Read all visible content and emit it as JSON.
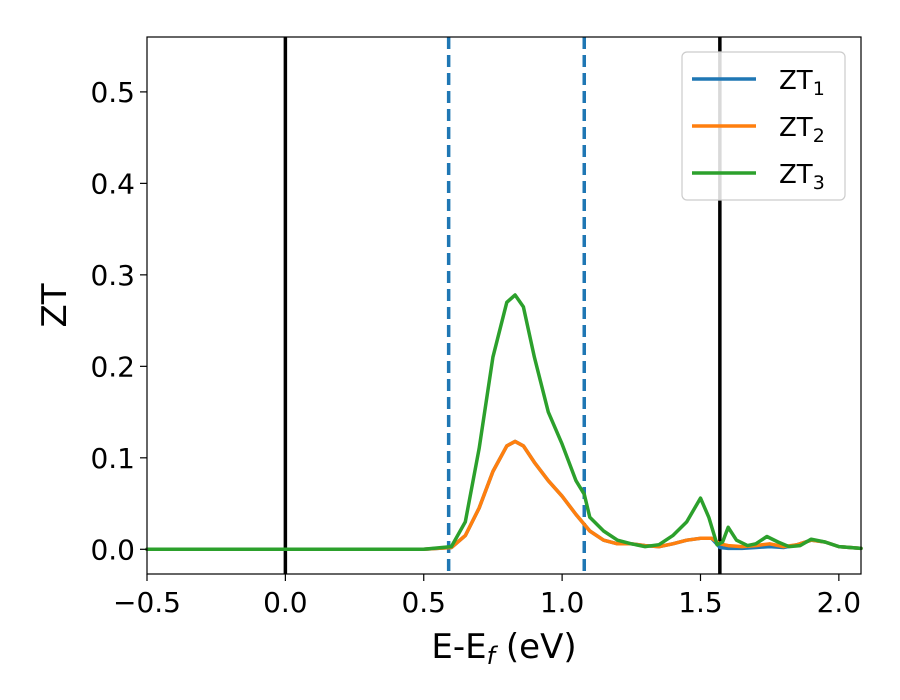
{
  "chart_data": {
    "type": "line",
    "xlabel": "E-E",
    "xlabel_sub": "f",
    "xlabel_unit": " (eV)",
    "ylabel": "ZT",
    "xlim": [
      -0.5,
      2.08
    ],
    "ylim": [
      -0.027,
      0.56
    ],
    "x_ticks": [
      -0.5,
      0.0,
      0.5,
      1.0,
      1.5,
      2.0
    ],
    "x_tick_labels": [
      "−0.5",
      "0.0",
      "0.5",
      "1.0",
      "1.5",
      "2.0"
    ],
    "y_ticks": [
      0.0,
      0.1,
      0.2,
      0.3,
      0.4,
      0.5
    ],
    "y_tick_labels": [
      "0.0",
      "0.1",
      "0.2",
      "0.3",
      "0.4",
      "0.5"
    ],
    "grid": false,
    "legend_position": "top-right",
    "vlines": [
      {
        "x": 0.0,
        "style": "solid",
        "color": "#000000"
      },
      {
        "x": 0.59,
        "style": "dashed",
        "color": "#1f77b4"
      },
      {
        "x": 1.08,
        "style": "dashed",
        "color": "#1f77b4"
      },
      {
        "x": 1.57,
        "style": "solid",
        "color": "#000000"
      }
    ],
    "series": [
      {
        "name": "ZT",
        "sub": "1",
        "color": "#1f77b4",
        "x": [
          -0.5,
          0.0,
          0.5,
          0.6,
          0.65,
          0.7,
          0.75,
          0.8,
          0.83,
          0.86,
          0.9,
          0.95,
          1.0,
          1.05,
          1.1,
          1.15,
          1.2,
          1.25,
          1.3,
          1.35,
          1.4,
          1.45,
          1.5,
          1.54,
          1.57,
          1.6,
          1.65,
          1.7,
          1.75,
          1.8,
          1.85,
          1.9,
          1.95,
          2.0,
          2.08
        ],
        "y": [
          0.0,
          0.0,
          0.0,
          0.002,
          0.015,
          0.045,
          0.085,
          0.113,
          0.118,
          0.113,
          0.095,
          0.075,
          0.058,
          0.038,
          0.02,
          0.01,
          0.006,
          0.006,
          0.004,
          0.003,
          0.006,
          0.01,
          0.012,
          0.012,
          0.002,
          0.001,
          0.001,
          0.002,
          0.003,
          0.002,
          0.005,
          0.01,
          0.008,
          0.003,
          0.001
        ]
      },
      {
        "name": "ZT",
        "sub": "2",
        "color": "#ff7f0e",
        "x": [
          -0.5,
          0.0,
          0.5,
          0.6,
          0.65,
          0.7,
          0.75,
          0.8,
          0.83,
          0.86,
          0.9,
          0.95,
          1.0,
          1.05,
          1.1,
          1.15,
          1.2,
          1.25,
          1.3,
          1.35,
          1.4,
          1.45,
          1.5,
          1.54,
          1.57,
          1.6,
          1.65,
          1.7,
          1.75,
          1.8,
          1.85,
          1.9,
          1.95,
          2.0,
          2.08
        ],
        "y": [
          0.0,
          0.0,
          0.0,
          0.002,
          0.015,
          0.045,
          0.085,
          0.113,
          0.118,
          0.113,
          0.095,
          0.075,
          0.058,
          0.038,
          0.02,
          0.01,
          0.006,
          0.006,
          0.004,
          0.003,
          0.006,
          0.01,
          0.012,
          0.012,
          0.006,
          0.004,
          0.003,
          0.004,
          0.006,
          0.003,
          0.005,
          0.01,
          0.008,
          0.003,
          0.001
        ]
      },
      {
        "name": "ZT",
        "sub": "3",
        "color": "#2ca02c",
        "x": [
          -0.5,
          0.0,
          0.5,
          0.6,
          0.65,
          0.7,
          0.75,
          0.8,
          0.83,
          0.86,
          0.9,
          0.95,
          1.0,
          1.05,
          1.08,
          1.1,
          1.15,
          1.2,
          1.25,
          1.3,
          1.35,
          1.4,
          1.45,
          1.5,
          1.53,
          1.56,
          1.58,
          1.6,
          1.63,
          1.67,
          1.7,
          1.74,
          1.78,
          1.82,
          1.86,
          1.9,
          1.95,
          2.0,
          2.08
        ],
        "y": [
          0.0,
          0.0,
          0.0,
          0.003,
          0.03,
          0.11,
          0.21,
          0.27,
          0.278,
          0.265,
          0.21,
          0.15,
          0.115,
          0.075,
          0.06,
          0.035,
          0.02,
          0.01,
          0.006,
          0.003,
          0.005,
          0.015,
          0.03,
          0.056,
          0.035,
          0.005,
          0.008,
          0.024,
          0.01,
          0.004,
          0.006,
          0.014,
          0.008,
          0.003,
          0.004,
          0.011,
          0.008,
          0.003,
          0.001
        ]
      }
    ]
  }
}
